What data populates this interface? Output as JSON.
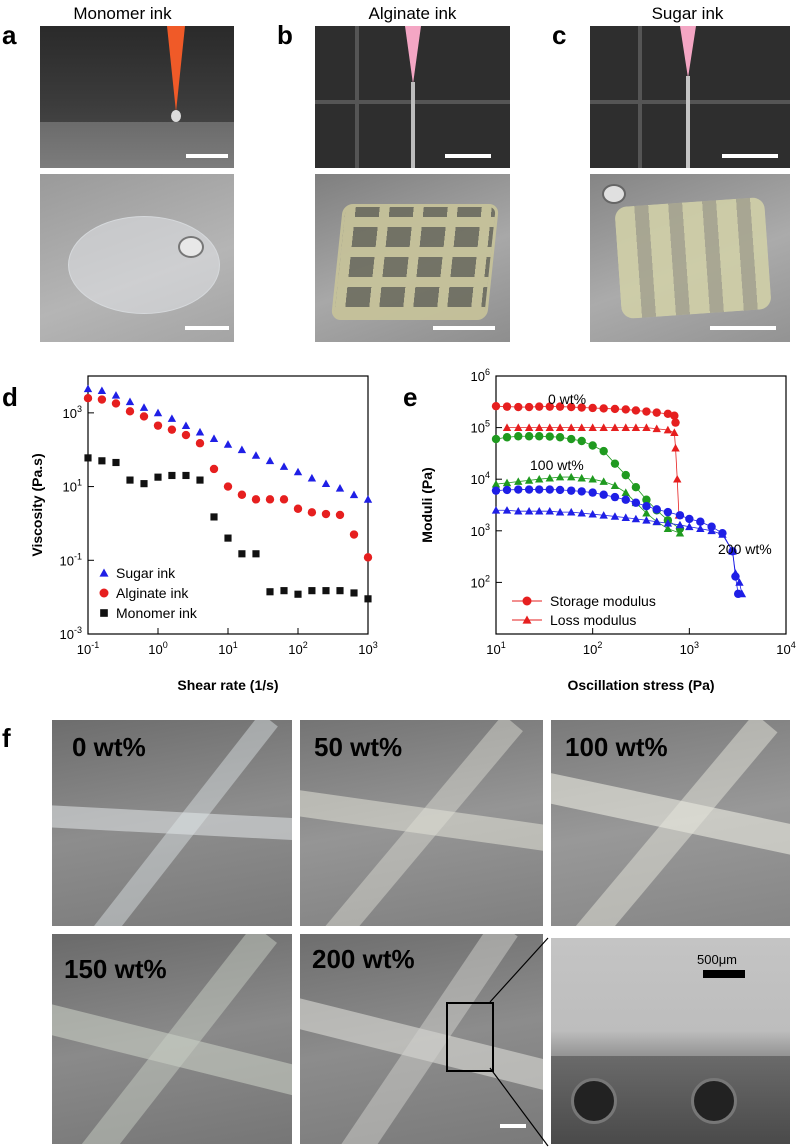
{
  "panels": {
    "a": {
      "letter": "a",
      "title": "Monomer ink"
    },
    "b": {
      "letter": "b",
      "title": "Alginate ink"
    },
    "c": {
      "letter": "c",
      "title": "Sugar ink"
    },
    "d": {
      "letter": "d"
    },
    "e": {
      "letter": "e"
    },
    "f": {
      "letter": "f",
      "labels": [
        "0 wt%",
        "50 wt%",
        "100 wt%",
        "150 wt%",
        "200 wt%"
      ],
      "scale_label": "500μm"
    }
  },
  "chart_data": [
    {
      "id": "d",
      "type": "scatter",
      "xlabel": "Shear rate (1/s)",
      "ylabel": "Viscosity (Pa.s)",
      "xscale": "log",
      "yscale": "log",
      "xlim": [
        0.1,
        1000
      ],
      "ylim": [
        0.001,
        10000
      ],
      "x_ticks": [
        "10^-1",
        "10^0",
        "10^1",
        "10^2",
        "10^3"
      ],
      "y_ticks": [
        "10^-3",
        "10^-1",
        "10^1",
        "10^3"
      ],
      "legend_position": "bottom-left",
      "series": [
        {
          "name": "Sugar ink",
          "color": "#1f1fe6",
          "marker": "triangle",
          "x": [
            0.1,
            0.158,
            0.251,
            0.398,
            0.631,
            1,
            1.58,
            2.51,
            3.98,
            6.31,
            10,
            15.8,
            25.1,
            39.8,
            63.1,
            100,
            158,
            251,
            398,
            631,
            1000
          ],
          "y": [
            4500,
            4000,
            3000,
            2000,
            1400,
            1000,
            700,
            450,
            300,
            200,
            140,
            100,
            70,
            50,
            35,
            25,
            17,
            12,
            9,
            6,
            4.5
          ]
        },
        {
          "name": "Alginate ink",
          "color": "#e61f1f",
          "marker": "circle",
          "x": [
            0.1,
            0.158,
            0.251,
            0.398,
            0.631,
            1,
            1.58,
            2.51,
            3.98,
            6.31,
            10,
            15.8,
            25.1,
            39.8,
            63.1,
            100,
            158,
            251,
            398,
            631,
            1000
          ],
          "y": [
            2500,
            2300,
            1800,
            1100,
            800,
            450,
            350,
            250,
            150,
            30,
            10,
            6,
            4.5,
            4.5,
            4.5,
            2.5,
            2,
            1.8,
            1.7,
            0.5,
            0.12
          ]
        },
        {
          "name": "Monomer ink",
          "color": "#111111",
          "marker": "square",
          "x": [
            0.1,
            0.158,
            0.251,
            0.398,
            0.631,
            1,
            1.58,
            2.51,
            3.98,
            6.31,
            10,
            15.8,
            25.1,
            39.8,
            63.1,
            100,
            158,
            251,
            398,
            631,
            1000
          ],
          "y": [
            60,
            50,
            45,
            15,
            12,
            18,
            20,
            20,
            15,
            1.5,
            0.4,
            0.15,
            0.15,
            0.014,
            0.015,
            0.012,
            0.015,
            0.015,
            0.015,
            0.013,
            0.009
          ]
        }
      ]
    },
    {
      "id": "e",
      "type": "scatter",
      "xlabel": "Oscillation stress (Pa)",
      "ylabel": "Moduli (Pa)",
      "xscale": "log",
      "yscale": "log",
      "xlim": [
        10,
        10000
      ],
      "ylim": [
        10,
        1000000
      ],
      "x_ticks": [
        "10^1",
        "10^2",
        "10^3",
        "10^4"
      ],
      "y_ticks": [
        "10^2",
        "10^3",
        "10^4",
        "10^5",
        "10^6"
      ],
      "legend_position": "bottom-left",
      "annotations": [
        "0 wt%",
        "100 wt%",
        "200 wt%"
      ],
      "legend": [
        {
          "name": "Storage modulus",
          "marker": "circle"
        },
        {
          "name": "Loss modulus",
          "marker": "triangle"
        }
      ],
      "series": [
        {
          "group": "0 wt%",
          "kind": "storage",
          "color": "#e61f1f",
          "marker": "circle",
          "x": [
            10,
            13,
            17,
            22,
            28,
            36,
            46,
            60,
            77,
            100,
            130,
            170,
            220,
            280,
            360,
            460,
            600,
            700,
            720
          ],
          "y": [
            260000,
            255000,
            250000,
            250000,
            255000,
            255000,
            255000,
            250000,
            245000,
            240000,
            235000,
            230000,
            225000,
            215000,
            205000,
            195000,
            185000,
            170000,
            125000
          ]
        },
        {
          "group": "0 wt%",
          "kind": "loss",
          "color": "#e61f1f",
          "marker": "triangle",
          "x": [
            13,
            17,
            22,
            28,
            36,
            46,
            60,
            77,
            100,
            130,
            170,
            220,
            280,
            360,
            460,
            600,
            700,
            720,
            750,
            780
          ],
          "y": [
            100000,
            100000,
            100000,
            100000,
            100000,
            100000,
            100000,
            100000,
            100000,
            100000,
            100000,
            100000,
            100000,
            100000,
            95000,
            90000,
            80000,
            40000,
            10000,
            2000
          ]
        },
        {
          "group": "100 wt%",
          "kind": "storage",
          "color": "#1f9a1f",
          "marker": "circle",
          "x": [
            10,
            13,
            17,
            22,
            28,
            36,
            46,
            60,
            77,
            100,
            130,
            170,
            220,
            280,
            360,
            460,
            600,
            800
          ],
          "y": [
            60000,
            65000,
            68000,
            68000,
            68000,
            67000,
            65000,
            60000,
            55000,
            45000,
            35000,
            20000,
            12000,
            7000,
            4000,
            2500,
            1600,
            1100
          ]
        },
        {
          "group": "100 wt%",
          "kind": "loss",
          "color": "#1f9a1f",
          "marker": "triangle",
          "x": [
            10,
            13,
            17,
            22,
            28,
            36,
            46,
            60,
            77,
            100,
            130,
            170,
            220,
            280,
            360,
            460,
            600,
            800
          ],
          "y": [
            8000,
            8500,
            9000,
            9500,
            10000,
            10500,
            11000,
            11000,
            10500,
            10000,
            9000,
            7500,
            5500,
            3500,
            2200,
            1500,
            1100,
            900
          ]
        },
        {
          "group": "200 wt%",
          "kind": "storage",
          "color": "#1f1fe6",
          "marker": "circle",
          "x": [
            10,
            13,
            17,
            22,
            28,
            36,
            46,
            60,
            77,
            100,
            130,
            170,
            220,
            280,
            360,
            460,
            600,
            800,
            1000,
            1300,
            1700,
            2200,
            2800,
            3000,
            3200
          ],
          "y": [
            6000,
            6200,
            6300,
            6300,
            6300,
            6300,
            6200,
            6000,
            5800,
            5500,
            5000,
            4500,
            4000,
            3500,
            3000,
            2600,
            2300,
            2000,
            1700,
            1500,
            1200,
            900,
            400,
            130,
            60
          ]
        },
        {
          "group": "200 wt%",
          "kind": "loss",
          "color": "#1f1fe6",
          "marker": "triangle",
          "x": [
            10,
            13,
            17,
            22,
            28,
            36,
            46,
            60,
            77,
            100,
            130,
            170,
            220,
            280,
            360,
            460,
            600,
            800,
            1000,
            1300,
            1700,
            2200,
            2800,
            3000,
            3300,
            3500
          ],
          "y": [
            2500,
            2500,
            2400,
            2400,
            2400,
            2400,
            2300,
            2300,
            2200,
            2100,
            2000,
            1900,
            1800,
            1700,
            1600,
            1500,
            1400,
            1300,
            1200,
            1100,
            1000,
            850,
            400,
            150,
            100,
            60
          ]
        }
      ]
    }
  ]
}
